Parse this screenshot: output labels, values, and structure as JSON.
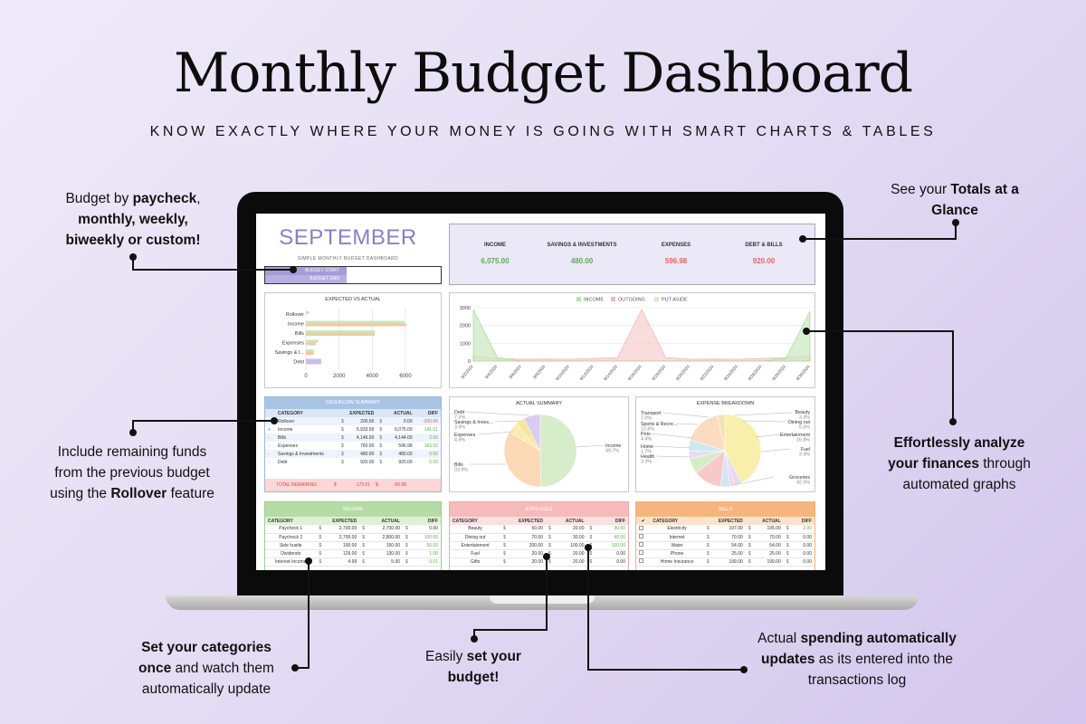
{
  "header": {
    "title": "Monthly Budget Dashboard",
    "subtitle": "KNOW EXACTLY WHERE YOUR MONEY IS GOING WITH SMART CHARTS & TABLES"
  },
  "callouts": {
    "paycheck": {
      "a": "Budget by ",
      "b": "paycheck",
      "c": ",",
      "d": "monthly, weekly,",
      "e": "biweekly or custom!"
    },
    "totals": {
      "a": "See your ",
      "b": "Totals at a",
      "c": "Glance"
    },
    "analyze": {
      "a": "Effortlessly analyze",
      "b": "your finances",
      "c": " through",
      "d": "automated graphs"
    },
    "rollover": {
      "a": "Include remaining funds",
      "b": "from the previous budget",
      "c": "using the ",
      "d": "Rollover",
      "e": " feature"
    },
    "categories": {
      "a": "Set your categories",
      "b": "once",
      "c": " and watch them",
      "d": "automatically update"
    },
    "budget": {
      "a": "Easily ",
      "b": "set your",
      "c": "budget!"
    },
    "spending": {
      "a": "Actual ",
      "b": "spending automatically",
      "c": "updates",
      "d": " as its entered into the",
      "e": "transactions log"
    }
  },
  "dashboard": {
    "month": "SEPTEMBER",
    "tagline": "SIMPLE MONTHLY BUDGET DASHBOARD",
    "budget_start": "BUDGET START",
    "budget_end": "BUDGET END",
    "totals": [
      {
        "label": "INCOME",
        "value": "6,075.00",
        "color": "#5fae4f"
      },
      {
        "label": "SAVINGS & INVESTMENTS",
        "value": "480.00",
        "color": "#5fae4f"
      },
      {
        "label": "EXPENSES",
        "value": "596.98",
        "color": "#e06666"
      },
      {
        "label": "DEBT & BILLS",
        "value": "920.00",
        "color": "#e06666"
      }
    ],
    "expected_vs_actual": {
      "title": "EXPECTED VS ACTUAL",
      "categories": [
        "Rollover",
        "Income",
        "Bills",
        "Expenses",
        "Savings & I...",
        "Debt"
      ],
      "ticks": [
        "0",
        "2000",
        "4000",
        "6000"
      ]
    },
    "cashflow": {
      "title": "CASHFLOW SUMMARY",
      "headers": [
        "CATEGORY",
        "EXPECTED",
        "ACTUAL",
        "DIFF"
      ],
      "rows": [
        {
          "sign": "+",
          "category": "Rollover",
          "cur1": "$",
          "expected": "200.00",
          "cur2": "$",
          "actual": "0.00",
          "diff": "-200.00",
          "neg": true
        },
        {
          "sign": "+",
          "category": "Income",
          "cur1": "$",
          "expected": "5,933.99",
          "cur2": "$",
          "actual": "6,075.00",
          "diff": "141.01",
          "neg": false
        },
        {
          "sign": "-",
          "category": "Bills",
          "cur1": "$",
          "expected": "4,146.00",
          "cur2": "$",
          "actual": "4,144.00",
          "diff": "2.00",
          "neg": false
        },
        {
          "sign": "-",
          "category": "Expenses",
          "cur1": "$",
          "expected": "760.00",
          "cur2": "$",
          "actual": "596.98",
          "diff": "163.02",
          "neg": false
        },
        {
          "sign": "-",
          "category": "Savings & Investments",
          "cur1": "$",
          "expected": "480.00",
          "cur2": "$",
          "actual": "480.00",
          "diff": "0.00",
          "neg": false
        },
        {
          "sign": "-",
          "category": "Debt",
          "cur1": "$",
          "expected": "920.00",
          "cur2": "$",
          "actual": "920.00",
          "diff": "0.00",
          "neg": false
        }
      ],
      "total_label": "TOTAL REMAINING",
      "total_cur": "$",
      "total_expected": "-172.01",
      "total_actual": "-65.98"
    },
    "income_table": {
      "title": "INCOME",
      "headers": [
        "CATEGORY",
        "EXPECTED",
        "ACTUAL",
        "DIFF"
      ],
      "rows": [
        {
          "category": "Paycheck 1",
          "cur1": "$",
          "expected": "2,700.00",
          "cur2": "$",
          "actual": "2,700.00",
          "cur3": "$",
          "diff": "0.00"
        },
        {
          "category": "Paycheck 2",
          "cur1": "$",
          "expected": "2,700.00",
          "cur2": "$",
          "actual": "2,800.00",
          "cur3": "$",
          "diff": "100.00"
        },
        {
          "category": "Side hustle",
          "cur1": "$",
          "expected": "100.00",
          "cur2": "$",
          "actual": "150.00",
          "cur3": "$",
          "diff": "50.00"
        },
        {
          "category": "Dividends",
          "cur1": "$",
          "expected": "129.00",
          "cur2": "$",
          "actual": "130.00",
          "cur3": "$",
          "diff": "1.00"
        },
        {
          "category": "Interest Income",
          "cur1": "$",
          "expected": "4.99",
          "cur2": "$",
          "actual": "5.00",
          "cur3": "$",
          "diff": "0.01"
        }
      ]
    },
    "expenses_table": {
      "title": "EXPENSES",
      "headers": [
        "CATEGORY",
        "EXPECTED",
        "ACTUAL",
        "DIFF"
      ],
      "rows": [
        {
          "category": "Beauty",
          "cur1": "$",
          "expected": "50.00",
          "cur2": "$",
          "actual": "20.00",
          "cur3": "$",
          "diff": "30.00"
        },
        {
          "category": "Dining out",
          "cur1": "$",
          "expected": "70.00",
          "cur2": "$",
          "actual": "30.00",
          "cur3": "$",
          "diff": "40.00"
        },
        {
          "category": "Entertainment",
          "cur1": "$",
          "expected": "200.00",
          "cur2": "$",
          "actual": "100.00",
          "cur3": "$",
          "diff": "100.00"
        },
        {
          "category": "Fuel",
          "cur1": "$",
          "expected": "20.00",
          "cur2": "$",
          "actual": "20.00",
          "cur3": "$",
          "diff": "0.00"
        },
        {
          "category": "Gifts",
          "cur1": "$",
          "expected": "20.00",
          "cur2": "$",
          "actual": "20.00",
          "cur3": "$",
          "diff": "0.00"
        }
      ]
    },
    "bills_table": {
      "title": "BILLS",
      "check": "✔",
      "headers": [
        "CATEGORY",
        "EXPECTED",
        "ACTUAL",
        "DIFF"
      ],
      "rows": [
        {
          "category": "Electricity",
          "cur1": "$",
          "expected": "197.00",
          "cur2": "$",
          "actual": "195.00",
          "cur3": "$",
          "diff": "2.00"
        },
        {
          "category": "Internet",
          "cur1": "$",
          "expected": "70.00",
          "cur2": "$",
          "actual": "70.00",
          "cur3": "$",
          "diff": "0.00"
        },
        {
          "category": "Water",
          "cur1": "$",
          "expected": "54.00",
          "cur2": "$",
          "actual": "54.00",
          "cur3": "$",
          "diff": "0.00"
        },
        {
          "category": "Phone",
          "cur1": "$",
          "expected": "25.00",
          "cur2": "$",
          "actual": "25.00",
          "cur3": "$",
          "diff": "0.00"
        },
        {
          "category": "Home Insurance",
          "cur1": "$",
          "expected": "199.00",
          "cur2": "$",
          "actual": "199.00",
          "cur3": "$",
          "diff": "0.00"
        }
      ]
    }
  },
  "chart_data": [
    {
      "type": "bar",
      "title": "EXPECTED VS ACTUAL",
      "categories": [
        "Rollover",
        "Income",
        "Bills",
        "Expenses",
        "Savings & I...",
        "Debt"
      ],
      "series": [
        {
          "name": "Expected",
          "values": [
            200,
            5933.99,
            4146,
            760,
            480,
            920
          ],
          "color": "#c8e6bd"
        },
        {
          "name": "Actual",
          "values": [
            0,
            6075,
            4144,
            596.98,
            480,
            920
          ],
          "color": "#f6c89a"
        }
      ],
      "xlim": [
        0,
        6000
      ]
    },
    {
      "type": "area",
      "legend": [
        "INCOME",
        "OUTGOING",
        "PUT ASIDE"
      ],
      "colors": [
        "#b9dfb0",
        "#f5b7b7",
        "#f9d8c5"
      ],
      "x": [
        "9/2/2024",
        "9/4/2024",
        "9/6/2024",
        "9/8/2024",
        "9/10/2024",
        "9/12/2024",
        "9/14/2024",
        "9/16/2024",
        "9/18/2024",
        "9/20/2024",
        "9/22/2024",
        "9/24/2024",
        "9/26/2024",
        "9/28/2024",
        "9/30/2024"
      ],
      "yticks": [
        "0",
        "1000",
        "2000",
        "3000"
      ],
      "ylim": [
        0,
        3000
      ]
    },
    {
      "type": "pie",
      "title": "ACTUAL SUMMARY",
      "slices": [
        {
          "label": "Income",
          "pct": "49.7%",
          "value": 49.7,
          "color": "#d7ecc9"
        },
        {
          "label": "Bills",
          "pct": "33.9%",
          "value": 33.9,
          "color": "#fbd9b7"
        },
        {
          "label": "Expenses",
          "pct": "4.9%",
          "value": 4.9,
          "color": "#f9edb0"
        },
        {
          "label": "Savings & Inves...",
          "pct": "3.9%",
          "value": 3.9,
          "color": "#f6e4a0"
        },
        {
          "label": "Debt",
          "pct": "7.5%",
          "value": 7.5,
          "color": "#d9cdef"
        }
      ]
    },
    {
      "type": "pie",
      "title": "EXPENSE BREAKDOWN",
      "slices": [
        {
          "label": "Groceries",
          "pct": "42.5%",
          "value": 42.5,
          "color": "#f8efac"
        },
        {
          "label": "Health",
          "pct": "3.3%",
          "value": 3.3,
          "color": "#e6d9f3"
        },
        {
          "label": "Home",
          "pct": "1.7%",
          "value": 1.7,
          "color": "#f4cfe0"
        },
        {
          "label": "Pets",
          "pct": "4.4%",
          "value": 4.4,
          "color": "#cfe6f7"
        },
        {
          "label": "Sports & Recre...",
          "pct": "12.6%",
          "value": 12.6,
          "color": "#f7c9c9"
        },
        {
          "label": "Transport",
          "pct": "7.0%",
          "value": 7.0,
          "color": "#d8ecc8"
        },
        {
          "label": "Beauty",
          "pct": "3.4%",
          "value": 3.4,
          "color": "#e9dcf6"
        },
        {
          "label": "Dining out",
          "pct": "5.0%",
          "value": 5.0,
          "color": "#cde9ee"
        },
        {
          "label": "Entertainment",
          "pct": "16.8%",
          "value": 16.8,
          "color": "#fbdcc0"
        },
        {
          "label": "Fuel",
          "pct": "3.4%",
          "value": 3.4,
          "color": "#f3e2b8"
        }
      ]
    }
  ]
}
